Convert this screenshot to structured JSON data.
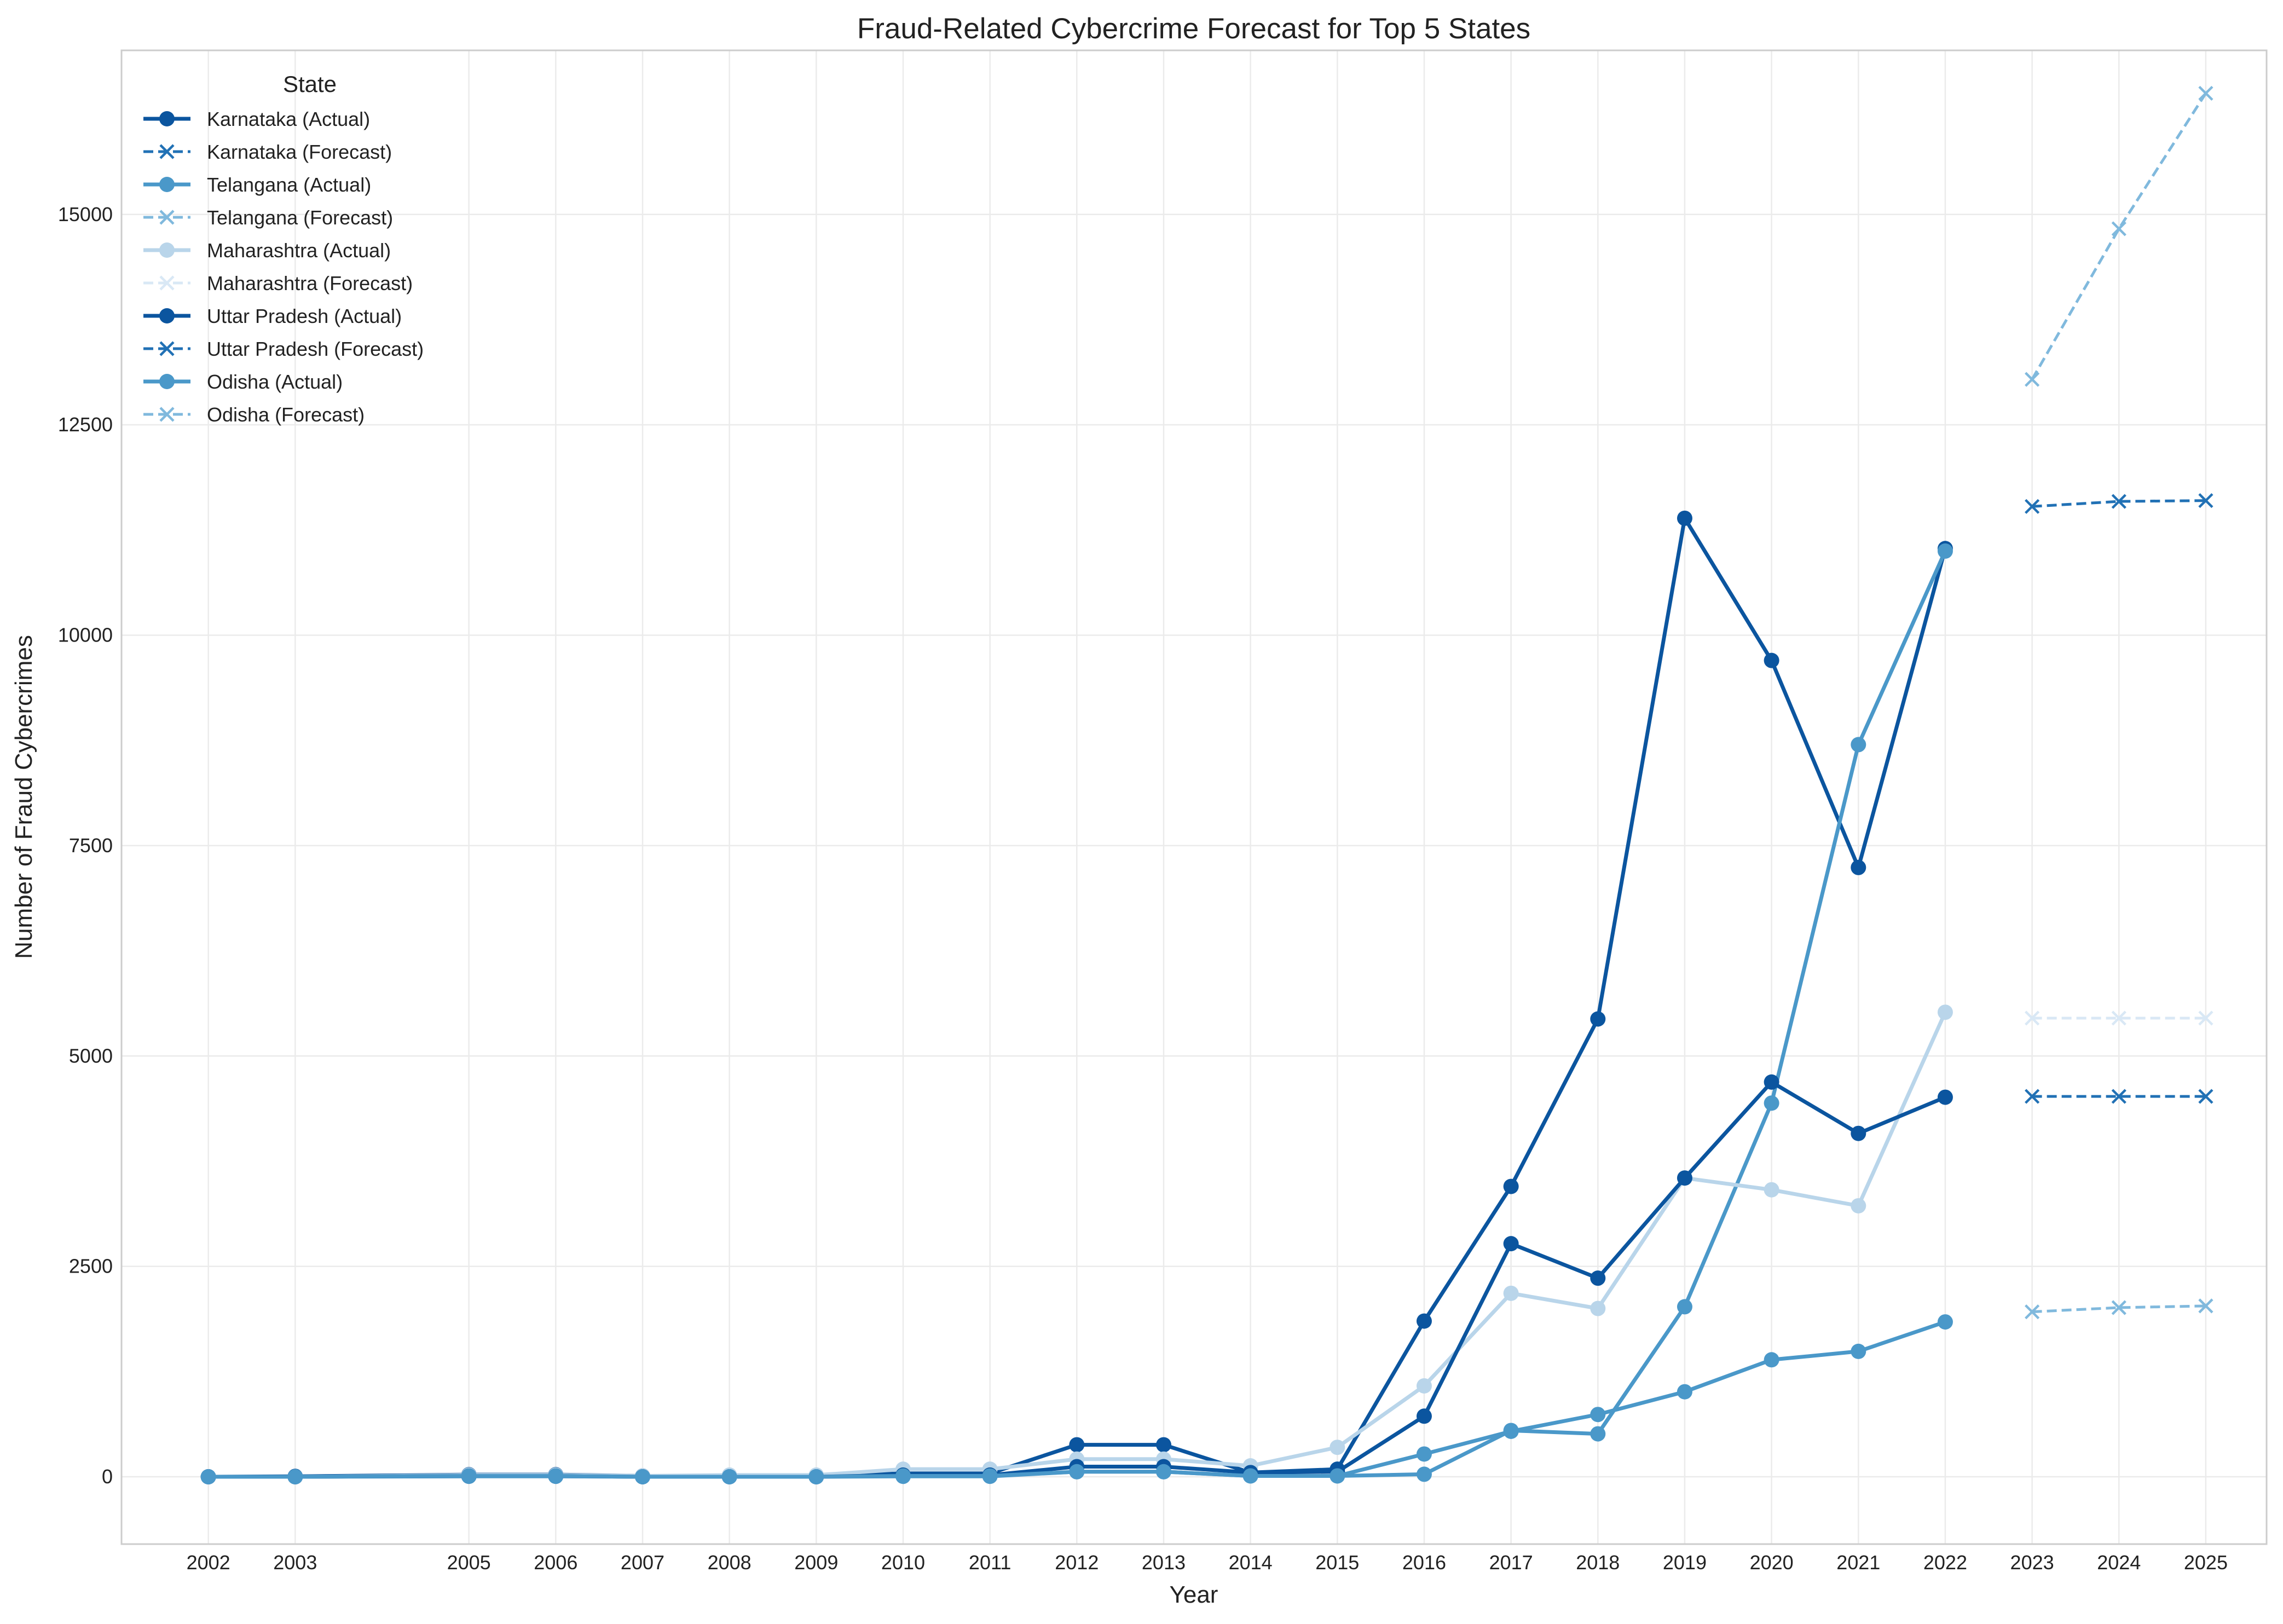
{
  "chart_data": {
    "type": "line",
    "title": "Fraud-Related Cybercrime Forecast for Top 5 States",
    "xlabel": "Year",
    "ylabel": "Number of Fraud Cybercrimes",
    "xlim": [
      2001.0,
      2025.7
    ],
    "ylim": [
      -800,
      16950
    ],
    "xticks": [
      2002,
      2003,
      2005,
      2006,
      2007,
      2008,
      2009,
      2010,
      2011,
      2012,
      2013,
      2014,
      2015,
      2016,
      2017,
      2018,
      2019,
      2020,
      2021,
      2022,
      2023,
      2024,
      2025
    ],
    "yticks": [
      0,
      2500,
      5000,
      7500,
      10000,
      12500,
      15000
    ],
    "grid": true,
    "legend": {
      "title": "State",
      "placement": "top-left",
      "entries": [
        {
          "label": "Karnataka (Actual)",
          "color": "#0b559f",
          "style": "solid",
          "marker": "circle"
        },
        {
          "label": "Karnataka (Forecast)",
          "color": "#2171b5",
          "style": "dashed",
          "marker": "x"
        },
        {
          "label": "Telangana (Actual)",
          "color": "#4a98c9",
          "style": "solid",
          "marker": "circle"
        },
        {
          "label": "Telangana (Forecast)",
          "color": "#80b9dd",
          "style": "dashed",
          "marker": "x"
        },
        {
          "label": "Maharashtra (Actual)",
          "color": "#b9d5ea",
          "style": "solid",
          "marker": "circle"
        },
        {
          "label": "Maharashtra (Forecast)",
          "color": "#d9e8f5",
          "style": "dashed",
          "marker": "x"
        },
        {
          "label": "Uttar Pradesh (Actual)",
          "color": "#0b559f",
          "style": "solid",
          "marker": "circle"
        },
        {
          "label": "Uttar Pradesh (Forecast)",
          "color": "#2171b5",
          "style": "dashed",
          "marker": "x"
        },
        {
          "label": "Odisha (Actual)",
          "color": "#4a98c9",
          "style": "solid",
          "marker": "circle"
        },
        {
          "label": "Odisha (Forecast)",
          "color": "#80b9dd",
          "style": "dashed",
          "marker": "x"
        }
      ]
    },
    "series": [
      {
        "name": "Karnataka (Actual)",
        "kind": "actual",
        "color": "#0b559f",
        "x": [
          2002,
          2003,
          2005,
          2006,
          2007,
          2008,
          2009,
          2010,
          2011,
          2012,
          2013,
          2014,
          2015,
          2016,
          2017,
          2018,
          2019,
          2020,
          2021,
          2022
        ],
        "values": [
          0,
          5,
          25,
          25,
          10,
          10,
          10,
          40,
          40,
          380,
          380,
          50,
          90,
          1850,
          3450,
          5440,
          11390,
          9700,
          7240,
          11030
        ]
      },
      {
        "name": "Karnataka (Forecast)",
        "kind": "forecast",
        "color": "#2171b5",
        "x": [
          2023,
          2024,
          2025
        ],
        "values": [
          11530,
          11590,
          11600
        ]
      },
      {
        "name": "Telangana (Actual)",
        "kind": "actual",
        "color": "#4a98c9",
        "x": [
          2002,
          2003,
          2005,
          2006,
          2007,
          2008,
          2009,
          2010,
          2011,
          2012,
          2013,
          2014,
          2015,
          2016,
          2017,
          2018,
          2019,
          2020,
          2021,
          2022
        ],
        "values": [
          0,
          0,
          5,
          5,
          0,
          0,
          0,
          5,
          5,
          60,
          60,
          10,
          10,
          30,
          550,
          510,
          2020,
          4440,
          8700,
          11000
        ]
      },
      {
        "name": "Telangana (Forecast)",
        "kind": "forecast",
        "color": "#80b9dd",
        "x": [
          2023,
          2024,
          2025
        ],
        "values": [
          13040,
          14830,
          16440
        ]
      },
      {
        "name": "Maharashtra (Actual)",
        "kind": "actual",
        "color": "#b9d5ea",
        "x": [
          2002,
          2003,
          2005,
          2006,
          2007,
          2008,
          2009,
          2010,
          2011,
          2012,
          2013,
          2014,
          2015,
          2016,
          2017,
          2018,
          2019,
          2020,
          2021,
          2022
        ],
        "values": [
          0,
          0,
          20,
          20,
          10,
          20,
          20,
          90,
          90,
          210,
          210,
          130,
          350,
          1080,
          2180,
          2000,
          3550,
          3410,
          3220,
          5520
        ]
      },
      {
        "name": "Maharashtra (Forecast)",
        "kind": "forecast",
        "color": "#d9e8f5",
        "x": [
          2023,
          2024,
          2025
        ],
        "values": [
          5450,
          5450,
          5450
        ]
      },
      {
        "name": "Uttar Pradesh (Actual)",
        "kind": "actual",
        "color": "#0b559f",
        "x": [
          2002,
          2003,
          2005,
          2006,
          2007,
          2008,
          2009,
          2010,
          2011,
          2012,
          2013,
          2014,
          2015,
          2016,
          2017,
          2018,
          2019,
          2020,
          2021,
          2022
        ],
        "values": [
          0,
          0,
          10,
          10,
          0,
          0,
          0,
          20,
          20,
          120,
          120,
          50,
          60,
          720,
          2770,
          2360,
          3550,
          4690,
          4080,
          4510
        ]
      },
      {
        "name": "Uttar Pradesh (Forecast)",
        "kind": "forecast",
        "color": "#2171b5",
        "x": [
          2023,
          2024,
          2025
        ],
        "values": [
          4520,
          4520,
          4520
        ]
      },
      {
        "name": "Odisha (Actual)",
        "kind": "actual",
        "color": "#4a98c9",
        "x": [
          2002,
          2003,
          2005,
          2006,
          2007,
          2008,
          2009,
          2010,
          2011,
          2012,
          2013,
          2014,
          2015,
          2016,
          2017,
          2018,
          2019,
          2020,
          2021,
          2022
        ],
        "values": [
          0,
          0,
          10,
          10,
          0,
          0,
          0,
          10,
          10,
          60,
          60,
          10,
          10,
          270,
          540,
          740,
          1010,
          1390,
          1490,
          1840
        ]
      },
      {
        "name": "Odisha (Forecast)",
        "kind": "forecast",
        "color": "#80b9dd",
        "x": [
          2023,
          2024,
          2025
        ],
        "values": [
          1960,
          2010,
          2030
        ]
      }
    ]
  }
}
